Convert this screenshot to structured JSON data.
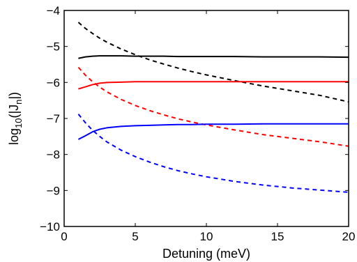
{
  "chart_data": {
    "type": "line",
    "title": "",
    "xlabel": "Detuning (meV)",
    "ylabel_parts": {
      "main": "log",
      "sub1": "10",
      "mid": "(|J",
      "sub2": "n",
      "end": "|)"
    },
    "xlim": [
      0,
      20
    ],
    "ylim": [
      -10,
      -4
    ],
    "xticks": [
      0,
      5,
      10,
      15,
      20
    ],
    "yticks": [
      -10,
      -9,
      -8,
      -7,
      -6,
      -5,
      -4
    ],
    "xtick_labels": [
      "0",
      "5",
      "10",
      "15",
      "20"
    ],
    "ytick_labels": [
      "−10",
      "−9",
      "−8",
      "−7",
      "−6",
      "−5",
      "−4"
    ],
    "grid": false,
    "legend": "none",
    "x": [
      1,
      1.5,
      2,
      2.5,
      3,
      4,
      5,
      6,
      7,
      8,
      9,
      10,
      12,
      14,
      16,
      18,
      20
    ],
    "series": [
      {
        "color": "#000000",
        "style": "solid",
        "values": [
          -5.33,
          -5.29,
          -5.27,
          -5.26,
          -5.26,
          -5.26,
          -5.27,
          -5.27,
          -5.27,
          -5.28,
          -5.28,
          -5.28,
          -5.28,
          -5.29,
          -5.29,
          -5.29,
          -5.3
        ]
      },
      {
        "color": "#000000",
        "style": "dashed",
        "values": [
          -4.33,
          -4.5,
          -4.64,
          -4.77,
          -4.88,
          -5.07,
          -5.23,
          -5.37,
          -5.49,
          -5.6,
          -5.7,
          -5.79,
          -5.95,
          -6.1,
          -6.23,
          -6.36,
          -6.54
        ]
      },
      {
        "color": "#ff0000",
        "style": "solid",
        "values": [
          -6.18,
          -6.12,
          -6.06,
          -6.02,
          -6.0,
          -5.99,
          -5.98,
          -5.98,
          -5.98,
          -5.98,
          -5.98,
          -5.98,
          -5.98,
          -5.98,
          -5.98,
          -5.98,
          -5.98
        ]
      },
      {
        "color": "#ff0000",
        "style": "dashed",
        "values": [
          -5.58,
          -5.8,
          -5.98,
          -6.13,
          -6.26,
          -6.47,
          -6.64,
          -6.78,
          -6.9,
          -7.01,
          -7.1,
          -7.18,
          -7.32,
          -7.45,
          -7.55,
          -7.65,
          -7.77
        ]
      },
      {
        "color": "#0000ff",
        "style": "solid",
        "values": [
          -7.58,
          -7.48,
          -7.37,
          -7.3,
          -7.26,
          -7.22,
          -7.2,
          -7.19,
          -7.18,
          -7.17,
          -7.17,
          -7.16,
          -7.16,
          -7.15,
          -7.15,
          -7.15,
          -7.15
        ]
      },
      {
        "color": "#0000ff",
        "style": "dashed",
        "values": [
          -6.88,
          -7.12,
          -7.33,
          -7.5,
          -7.65,
          -7.88,
          -8.06,
          -8.21,
          -8.34,
          -8.45,
          -8.54,
          -8.62,
          -8.75,
          -8.85,
          -8.93,
          -8.99,
          -9.05
        ]
      }
    ]
  }
}
